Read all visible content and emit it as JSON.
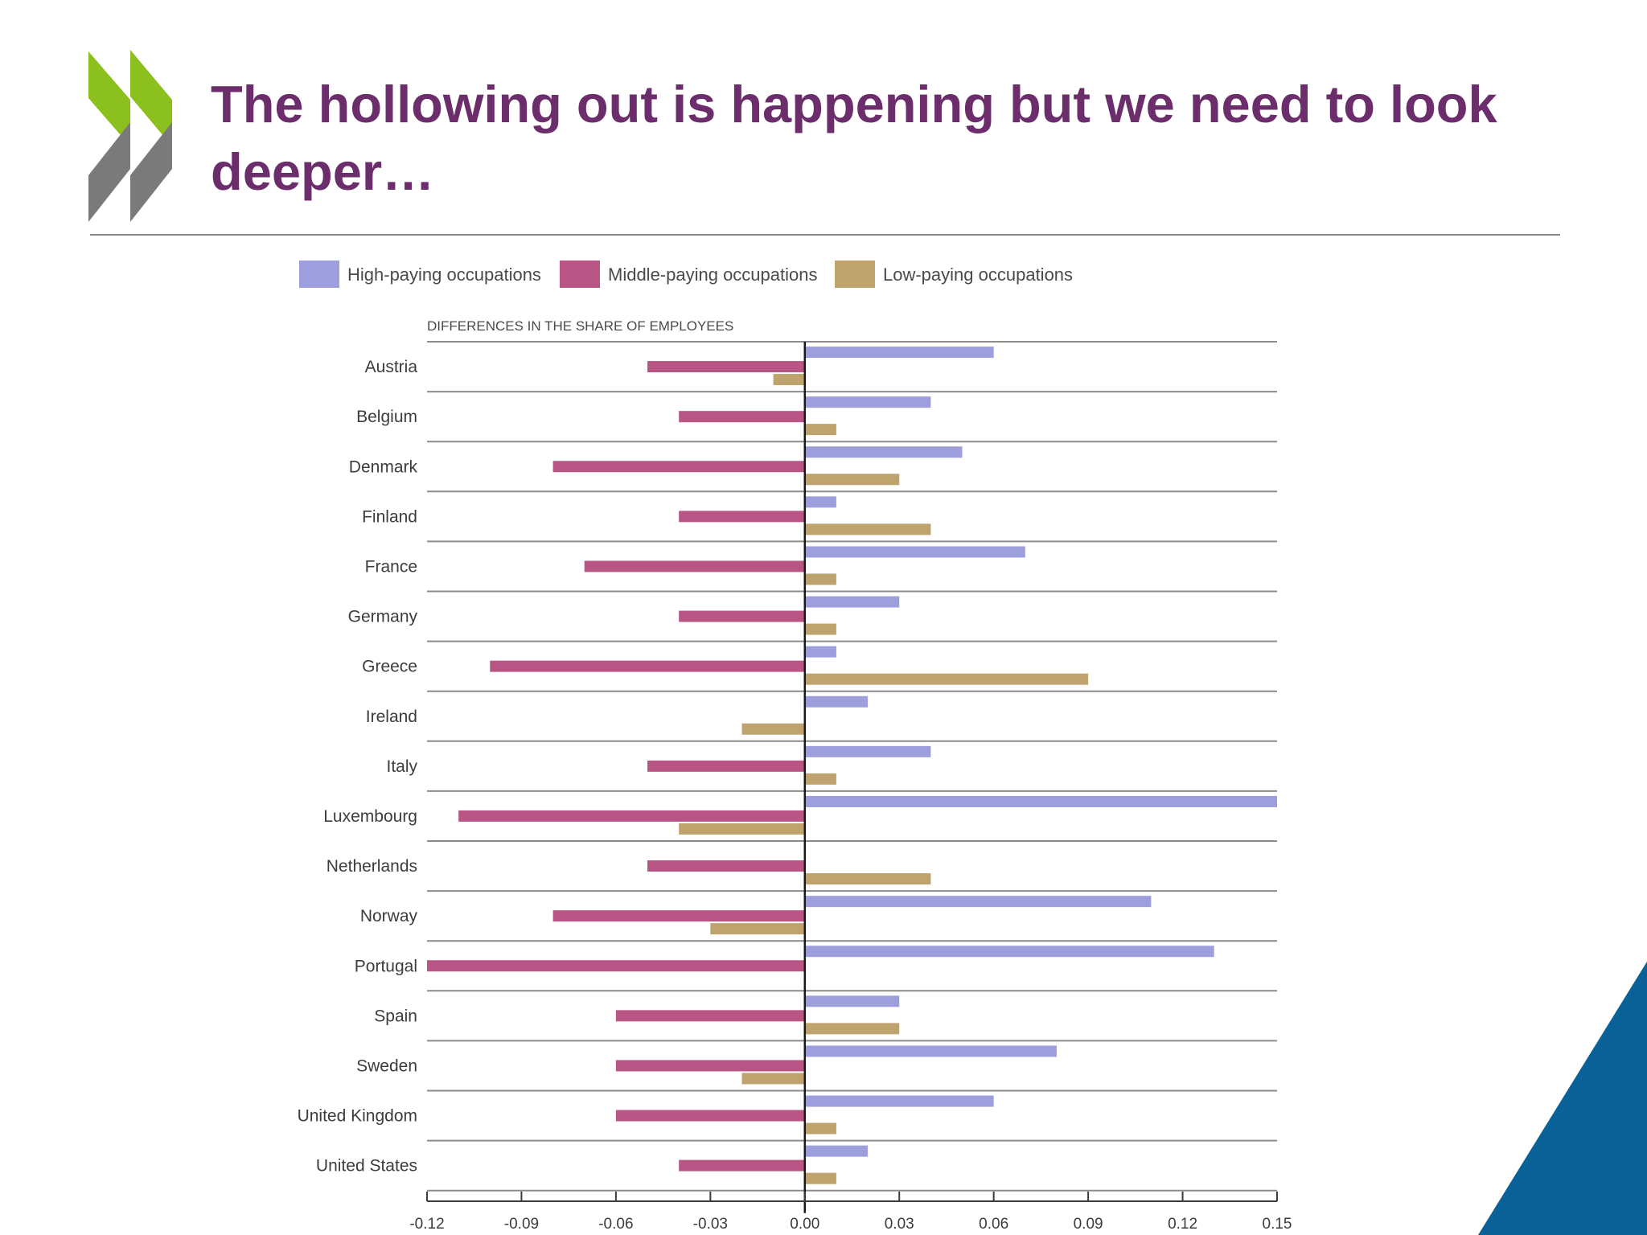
{
  "slide": {
    "title": "The hollowing out is happening but we need to look deeper…"
  },
  "icons": {
    "logo": "double-chevron-logo-icon",
    "corner": "blue-corner-triangle"
  },
  "colors": {
    "title": "#6b2d6b",
    "high": "#9c9fdc",
    "middle": "#b85585",
    "low": "#bfa36e",
    "corner": "#0a6198",
    "logo_green": "#8cc01e",
    "logo_gray": "#7a7a7a"
  },
  "chart_data": {
    "type": "bar",
    "orientation": "horizontal",
    "title": "DIFFERENCES IN THE SHARE OF EMPLOYEES",
    "xlabel": "",
    "ylabel": "",
    "xlim": [
      -0.12,
      0.15
    ],
    "xticks": [
      "-0.12",
      "-0.09",
      "-0.06",
      "-0.03",
      "0.00",
      "0.03",
      "0.06",
      "0.09",
      "0.12",
      "0.15"
    ],
    "legend_position": "top",
    "grid": "horizontal separators",
    "categories": [
      "Austria",
      "Belgium",
      "Denmark",
      "Finland",
      "France",
      "Germany",
      "Greece",
      "Ireland",
      "Italy",
      "Luxembourg",
      "Netherlands",
      "Norway",
      "Portugal",
      "Spain",
      "Sweden",
      "United Kingdom",
      "United States"
    ],
    "series": [
      {
        "name": "High-paying occupations",
        "color": "#9c9fdc",
        "values": [
          0.06,
          0.04,
          0.05,
          0.01,
          0.07,
          0.03,
          0.01,
          0.02,
          0.04,
          0.15,
          0.0,
          0.11,
          0.13,
          0.03,
          0.08,
          0.06,
          0.02
        ]
      },
      {
        "name": "Middle-paying occupations",
        "color": "#b85585",
        "values": [
          -0.05,
          -0.04,
          -0.08,
          -0.04,
          -0.07,
          -0.04,
          -0.1,
          0.0,
          -0.05,
          -0.11,
          -0.05,
          -0.08,
          -0.12,
          -0.06,
          -0.06,
          -0.06,
          -0.04
        ]
      },
      {
        "name": "Low-paying occupations",
        "color": "#bfa36e",
        "values": [
          -0.01,
          0.01,
          0.03,
          0.04,
          0.01,
          0.01,
          0.09,
          -0.02,
          0.01,
          -0.04,
          0.04,
          -0.03,
          0.0,
          0.03,
          -0.02,
          0.01,
          0.01
        ]
      }
    ]
  }
}
